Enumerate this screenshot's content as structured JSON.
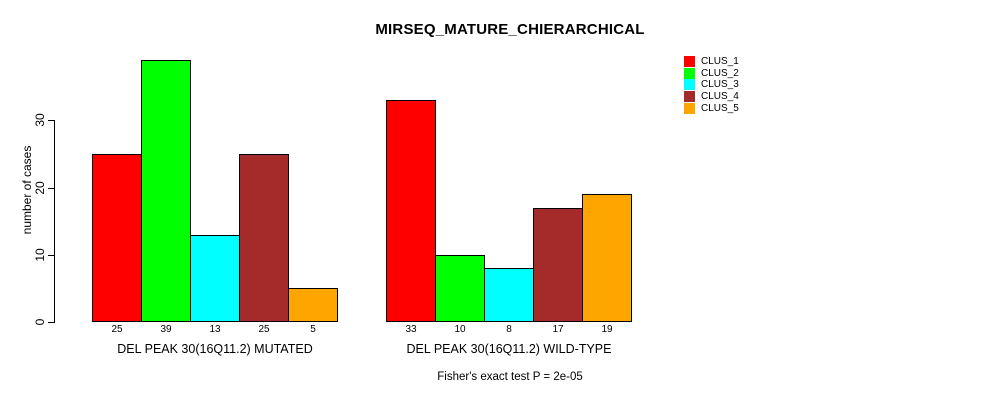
{
  "chart_data": {
    "type": "bar",
    "title": "MIRSEQ_MATURE_CHIERARCHICAL",
    "ylabel": "number of cases",
    "annotation": "Fisher's exact test P = 2e-05",
    "ylim": [
      0,
      39
    ],
    "yticks": [
      0,
      10,
      20,
      30
    ],
    "grid": false,
    "legend_position": "top-right",
    "clusters": [
      {
        "name": "CLUS_1",
        "color": "#FF0000"
      },
      {
        "name": "CLUS_2",
        "color": "#00FF00"
      },
      {
        "name": "CLUS_3",
        "color": "#00FFFF"
      },
      {
        "name": "CLUS_4",
        "color": "#A52A2A"
      },
      {
        "name": "CLUS_5",
        "color": "#FFA500"
      }
    ],
    "groups": [
      {
        "label": "DEL PEAK 30(16Q11.2) MUTATED",
        "values": [
          25,
          39,
          13,
          25,
          5
        ]
      },
      {
        "label": "DEL PEAK 30(16Q11.2) WILD-TYPE",
        "values": [
          33,
          10,
          8,
          17,
          19
        ]
      }
    ]
  }
}
